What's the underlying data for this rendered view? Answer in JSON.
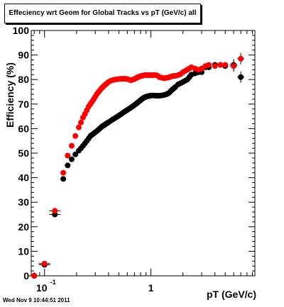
{
  "title": "Effeciency wrt Geom for Global Tracks vs pT (GeV/c) all",
  "footer": "Wed Nov  9 10:44:51 2011",
  "chart_data": {
    "type": "scatter",
    "xlabel": "pT (GeV/c)",
    "ylabel": "Efficiency (%)",
    "xscale": "log",
    "xlim": [
      0.075,
      9.5
    ],
    "ylim": [
      0,
      100
    ],
    "y_ticks": [
      0,
      10,
      20,
      30,
      40,
      50,
      60,
      70,
      80,
      90,
      100
    ],
    "x_tick_labels": [
      {
        "value": 0.1,
        "label": "10",
        "exp": "-1"
      },
      {
        "value": 1,
        "label": "1"
      }
    ],
    "grid": false,
    "legend": "none",
    "series": [
      {
        "color": "#000000",
        "x": [
          0.08,
          0.1,
          0.125,
          0.15,
          0.165,
          0.18,
          0.195,
          0.21,
          0.22,
          0.23,
          0.24,
          0.25,
          0.26,
          0.27,
          0.28,
          0.29,
          0.3,
          0.31,
          0.32,
          0.33,
          0.34,
          0.35,
          0.36,
          0.37,
          0.38,
          0.39,
          0.4,
          0.42,
          0.44,
          0.46,
          0.48,
          0.5,
          0.52,
          0.54,
          0.56,
          0.58,
          0.6,
          0.62,
          0.64,
          0.66,
          0.68,
          0.7,
          0.72,
          0.74,
          0.76,
          0.78,
          0.8,
          0.82,
          0.84,
          0.86,
          0.88,
          0.9,
          0.92,
          0.94,
          0.96,
          0.98,
          1.0,
          1.04,
          1.08,
          1.12,
          1.16,
          1.2,
          1.25,
          1.3,
          1.35,
          1.4,
          1.45,
          1.5,
          1.55,
          1.6,
          1.65,
          1.7,
          1.8,
          1.9,
          2.0,
          2.1,
          2.2,
          2.3,
          2.4,
          2.6,
          2.8,
          3.0,
          3.25,
          3.5,
          4.0,
          4.5,
          5.0,
          6.0,
          7.0
        ],
        "y": [
          0.0,
          4.5,
          25.0,
          39.5,
          45.0,
          47.5,
          49.5,
          51.0,
          52.0,
          53.0,
          54.0,
          55.0,
          56.0,
          57.0,
          57.5,
          58.0,
          58.5,
          59.0,
          59.5,
          60.0,
          60.5,
          61.0,
          61.3,
          61.6,
          62.0,
          62.3,
          62.6,
          63.2,
          63.8,
          64.3,
          64.8,
          65.3,
          65.8,
          66.3,
          66.8,
          67.2,
          67.6,
          68.0,
          68.4,
          68.8,
          69.2,
          69.6,
          70.0,
          70.4,
          70.8,
          71.2,
          71.6,
          72.0,
          72.3,
          72.6,
          72.8,
          73.0,
          73.1,
          73.2,
          73.3,
          73.4,
          73.5,
          73.5,
          73.5,
          73.4,
          73.4,
          73.4,
          73.5,
          73.6,
          73.8,
          74.0,
          74.3,
          74.8,
          75.5,
          76.0,
          76.5,
          77.0,
          78.0,
          78.5,
          79.0,
          79.5,
          80.0,
          81.0,
          82.0,
          82.5,
          83.0,
          83.0,
          85.0,
          85.0,
          86.0,
          86.0,
          85.5,
          86.0,
          81.0
        ]
      },
      {
        "color": "#ff0000",
        "x": [
          0.08,
          0.1,
          0.125,
          0.15,
          0.165,
          0.18,
          0.195,
          0.21,
          0.22,
          0.23,
          0.24,
          0.25,
          0.26,
          0.27,
          0.28,
          0.29,
          0.3,
          0.31,
          0.32,
          0.33,
          0.34,
          0.35,
          0.36,
          0.37,
          0.38,
          0.39,
          0.4,
          0.42,
          0.44,
          0.46,
          0.48,
          0.5,
          0.52,
          0.54,
          0.56,
          0.58,
          0.6,
          0.62,
          0.64,
          0.66,
          0.68,
          0.7,
          0.72,
          0.74,
          0.76,
          0.78,
          0.8,
          0.82,
          0.84,
          0.86,
          0.88,
          0.9,
          0.92,
          0.94,
          0.96,
          0.98,
          1.0,
          1.04,
          1.08,
          1.12,
          1.16,
          1.2,
          1.25,
          1.3,
          1.35,
          1.4,
          1.45,
          1.5,
          1.55,
          1.6,
          1.65,
          1.7,
          1.8,
          1.9,
          2.0,
          2.1,
          2.2,
          2.3,
          2.4,
          2.6,
          2.8,
          3.0,
          3.25,
          3.5,
          4.0,
          4.5,
          5.0,
          6.0,
          7.0
        ],
        "y": [
          0.0,
          5.0,
          26.5,
          42.0,
          49.0,
          53.0,
          57.0,
          60.5,
          62.5,
          64.5,
          66.0,
          67.5,
          69.0,
          70.0,
          71.0,
          72.0,
          73.0,
          74.0,
          74.8,
          75.5,
          76.2,
          76.8,
          77.3,
          77.8,
          78.2,
          78.6,
          79.0,
          79.5,
          79.8,
          80.0,
          80.1,
          80.2,
          80.3,
          80.3,
          80.3,
          80.3,
          80.2,
          80.0,
          79.8,
          79.8,
          80.0,
          80.2,
          80.5,
          80.8,
          81.0,
          81.2,
          81.4,
          81.5,
          81.6,
          81.7,
          81.8,
          81.8,
          81.8,
          81.8,
          81.8,
          81.8,
          81.8,
          81.8,
          81.8,
          81.8,
          81.5,
          81.0,
          80.8,
          80.6,
          80.6,
          80.7,
          80.8,
          81.0,
          81.2,
          81.4,
          81.5,
          81.5,
          81.8,
          82.2,
          83.0,
          83.5,
          84.0,
          84.5,
          85.0,
          84.5,
          84.0,
          84.5,
          85.5,
          86.0,
          85.5,
          86.0,
          86.0,
          85.5,
          88.5
        ]
      }
    ]
  }
}
